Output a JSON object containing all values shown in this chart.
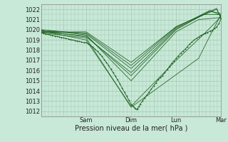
{
  "xlabel": "Pression niveau de la mer( hPa )",
  "bg_color": "#c8e8d8",
  "grid_color": "#a0c8b0",
  "line_color": "#1a5c1a",
  "marker_color": "#1a5c1a",
  "ylim": [
    1011.5,
    1022.5
  ],
  "yticks": [
    1012,
    1013,
    1014,
    1015,
    1016,
    1017,
    1018,
    1019,
    1020,
    1021,
    1022
  ],
  "xlim": [
    0,
    8
  ],
  "xtick_day_positions": [
    2,
    4,
    6,
    8
  ],
  "xtick_day_labels": [
    "Sam",
    "Dim",
    "Lun",
    "Mar"
  ],
  "lines": [
    [
      0.0,
      1019.7,
      2.0,
      1019.2,
      4.0,
      1012.4,
      5.5,
      1014.8,
      7.0,
      1017.2,
      7.5,
      1019.4,
      8.0,
      1021.5
    ],
    [
      0.0,
      1019.9,
      2.0,
      1019.0,
      4.0,
      1012.5,
      6.0,
      1017.0,
      7.2,
      1019.5,
      8.0,
      1021.3
    ],
    [
      0.0,
      1020.0,
      2.0,
      1019.5,
      4.0,
      1015.0,
      6.0,
      1019.8,
      7.0,
      1021.0,
      8.0,
      1021.2
    ],
    [
      0.0,
      1019.8,
      2.0,
      1019.4,
      4.0,
      1015.5,
      6.0,
      1020.0,
      7.2,
      1021.5,
      8.0,
      1021.5
    ],
    [
      0.0,
      1019.9,
      2.0,
      1019.3,
      4.0,
      1015.8,
      6.0,
      1020.1,
      7.5,
      1021.8,
      8.0,
      1021.6
    ],
    [
      0.0,
      1020.0,
      2.0,
      1019.6,
      4.0,
      1016.2,
      6.0,
      1020.2,
      7.5,
      1021.9,
      8.0,
      1021.4
    ],
    [
      0.0,
      1019.85,
      2.0,
      1019.7,
      4.0,
      1016.5,
      6.0,
      1020.3,
      7.8,
      1022.0,
      8.0,
      1021.2
    ],
    [
      0.0,
      1019.75,
      2.0,
      1019.8,
      4.0,
      1016.8,
      6.0,
      1020.3,
      7.8,
      1022.1,
      8.0,
      1021.0
    ]
  ],
  "dense_line": [
    [
      0.0,
      1019.7
    ],
    [
      0.1,
      1019.65
    ],
    [
      0.2,
      1019.6
    ],
    [
      0.3,
      1019.55
    ],
    [
      0.4,
      1019.5
    ],
    [
      0.5,
      1019.45
    ],
    [
      0.6,
      1019.4
    ],
    [
      0.7,
      1019.35
    ],
    [
      0.8,
      1019.3
    ],
    [
      0.9,
      1019.25
    ],
    [
      1.0,
      1019.2
    ],
    [
      1.1,
      1019.15
    ],
    [
      1.2,
      1019.1
    ],
    [
      1.3,
      1019.05
    ],
    [
      1.4,
      1019.0
    ],
    [
      1.5,
      1018.95
    ],
    [
      1.6,
      1018.9
    ],
    [
      1.7,
      1018.85
    ],
    [
      1.8,
      1018.8
    ],
    [
      1.9,
      1018.75
    ],
    [
      2.0,
      1018.75
    ],
    [
      2.1,
      1018.6
    ],
    [
      2.2,
      1018.45
    ],
    [
      2.3,
      1018.3
    ],
    [
      2.4,
      1018.1
    ],
    [
      2.5,
      1017.9
    ],
    [
      2.6,
      1017.65
    ],
    [
      2.7,
      1017.4
    ],
    [
      2.8,
      1017.1
    ],
    [
      2.9,
      1016.8
    ],
    [
      3.0,
      1016.5
    ],
    [
      3.1,
      1016.15
    ],
    [
      3.2,
      1015.8
    ],
    [
      3.3,
      1015.45
    ],
    [
      3.4,
      1015.1
    ],
    [
      3.5,
      1014.7
    ],
    [
      3.6,
      1014.3
    ],
    [
      3.7,
      1013.9
    ],
    [
      3.8,
      1013.5
    ],
    [
      3.9,
      1013.1
    ],
    [
      4.0,
      1012.7
    ],
    [
      4.1,
      1012.5
    ],
    [
      4.15,
      1012.35
    ],
    [
      4.2,
      1012.25
    ],
    [
      4.25,
      1012.2
    ],
    [
      4.3,
      1012.3
    ],
    [
      4.35,
      1012.5
    ],
    [
      4.4,
      1012.7
    ],
    [
      4.5,
      1013.0
    ],
    [
      4.6,
      1013.3
    ],
    [
      4.7,
      1013.6
    ],
    [
      4.8,
      1013.9
    ],
    [
      4.9,
      1014.2
    ],
    [
      5.0,
      1014.5
    ],
    [
      5.1,
      1014.8
    ],
    [
      5.2,
      1015.1
    ],
    [
      5.3,
      1015.3
    ],
    [
      5.4,
      1015.5
    ],
    [
      5.5,
      1015.8
    ],
    [
      5.6,
      1016.1
    ],
    [
      5.7,
      1016.4
    ],
    [
      5.8,
      1016.7
    ],
    [
      5.9,
      1016.95
    ],
    [
      6.0,
      1017.2
    ],
    [
      6.1,
      1017.45
    ],
    [
      6.2,
      1017.7
    ],
    [
      6.3,
      1017.9
    ],
    [
      6.4,
      1018.1
    ],
    [
      6.5,
      1018.35
    ],
    [
      6.6,
      1018.6
    ],
    [
      6.7,
      1018.8
    ],
    [
      6.8,
      1019.0
    ],
    [
      6.9,
      1019.15
    ],
    [
      7.0,
      1019.3
    ],
    [
      7.1,
      1019.45
    ],
    [
      7.2,
      1019.55
    ],
    [
      7.3,
      1019.65
    ],
    [
      7.4,
      1019.75
    ],
    [
      7.5,
      1019.85
    ],
    [
      7.6,
      1019.95
    ],
    [
      7.7,
      1020.1
    ],
    [
      7.8,
      1020.3
    ],
    [
      7.9,
      1020.6
    ],
    [
      8.0,
      1021.1
    ],
    [
      8.05,
      1021.4
    ],
    [
      8.1,
      1021.5
    ],
    [
      8.15,
      1021.55
    ],
    [
      8.2,
      1021.5
    ],
    [
      8.25,
      1021.45
    ],
    [
      8.3,
      1021.4
    ],
    [
      8.35,
      1021.35
    ],
    [
      8.4,
      1021.3
    ],
    [
      8.45,
      1021.28
    ],
    [
      8.5,
      1021.25
    ]
  ]
}
